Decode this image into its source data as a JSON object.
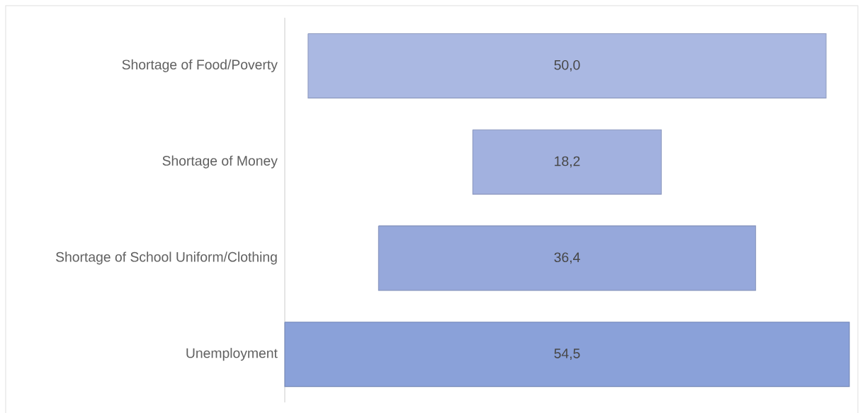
{
  "chart_data": {
    "type": "other",
    "categories": [
      "Shortage of Food/Poverty",
      "Shortage of Money",
      "Shortage of School Uniform/Clothing",
      "Unemployment"
    ],
    "values": [
      50.0,
      18.2,
      36.4,
      54.5
    ],
    "value_labels": [
      "50,0",
      "18,2",
      "36,4",
      "54,5"
    ],
    "colors": [
      "#aab8e2",
      "#a2b1df",
      "#96a8db",
      "#8aa1d9"
    ]
  }
}
